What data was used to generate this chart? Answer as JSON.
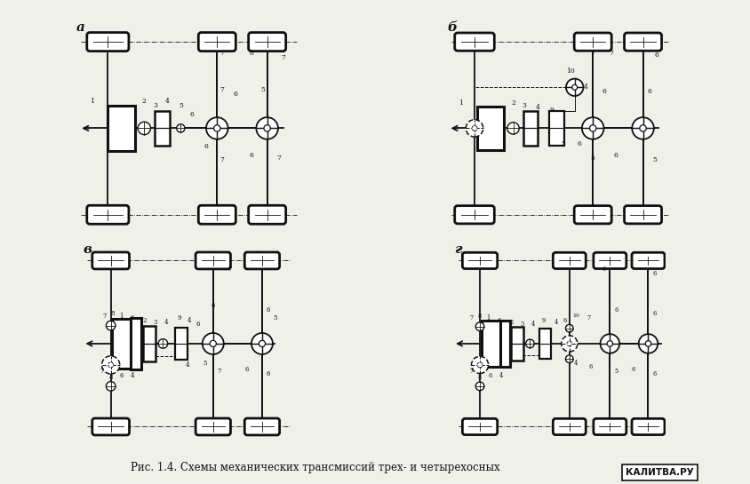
{
  "bg_color": "#f0f0eb",
  "line_color": "#111111",
  "caption": "Рис. 1.4. Схемы механических трансмиссий трех- и четырехосных",
  "watermark": "КАЛИТВА.РУ",
  "caption_fontsize": 8.5,
  "watermark_fontsize": 7.5,
  "panel_labels": [
    "а",
    "б",
    "в",
    "г"
  ]
}
